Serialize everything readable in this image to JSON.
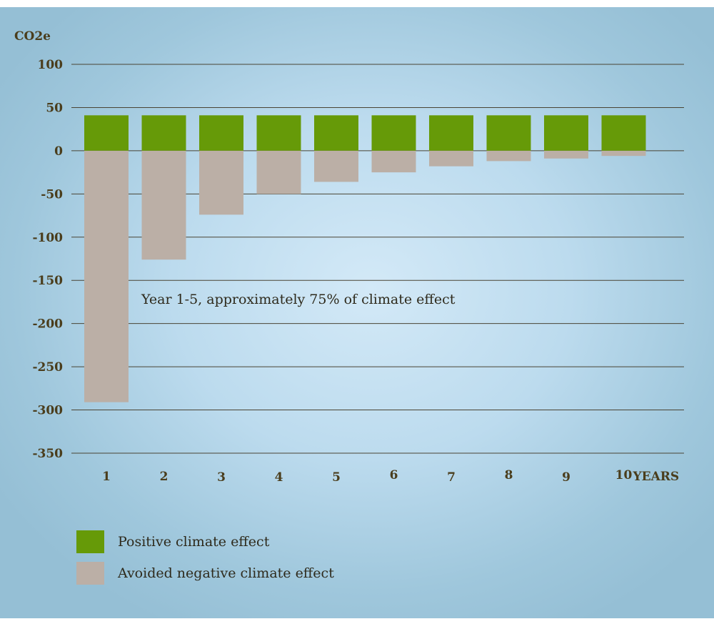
{
  "chart_data": {
    "type": "bar",
    "ylabel": "CO2e",
    "x_unit_label": "YEARS",
    "categories": [
      "1",
      "2",
      "3",
      "4",
      "5",
      "6",
      "7",
      "8",
      "9",
      "10"
    ],
    "series": [
      {
        "name": "Positive climate effect",
        "color": "#669a08",
        "values": [
          41,
          41,
          41,
          41,
          41,
          41,
          41,
          41,
          41,
          41
        ]
      },
      {
        "name": "Avoided negative climate effect",
        "color": "#bbafa6",
        "values": [
          -291,
          -126,
          -74,
          -50,
          -36,
          -25,
          -18,
          -12,
          -9,
          -6
        ]
      }
    ],
    "ylim": [
      -350,
      100
    ],
    "yticks": [
      100,
      50,
      0,
      -50,
      -100,
      -150,
      -200,
      -250,
      -300,
      -350
    ],
    "grid": true,
    "legend": "bottom-left",
    "annotation": "Year 1-5, approximately 75% of climate effect"
  }
}
